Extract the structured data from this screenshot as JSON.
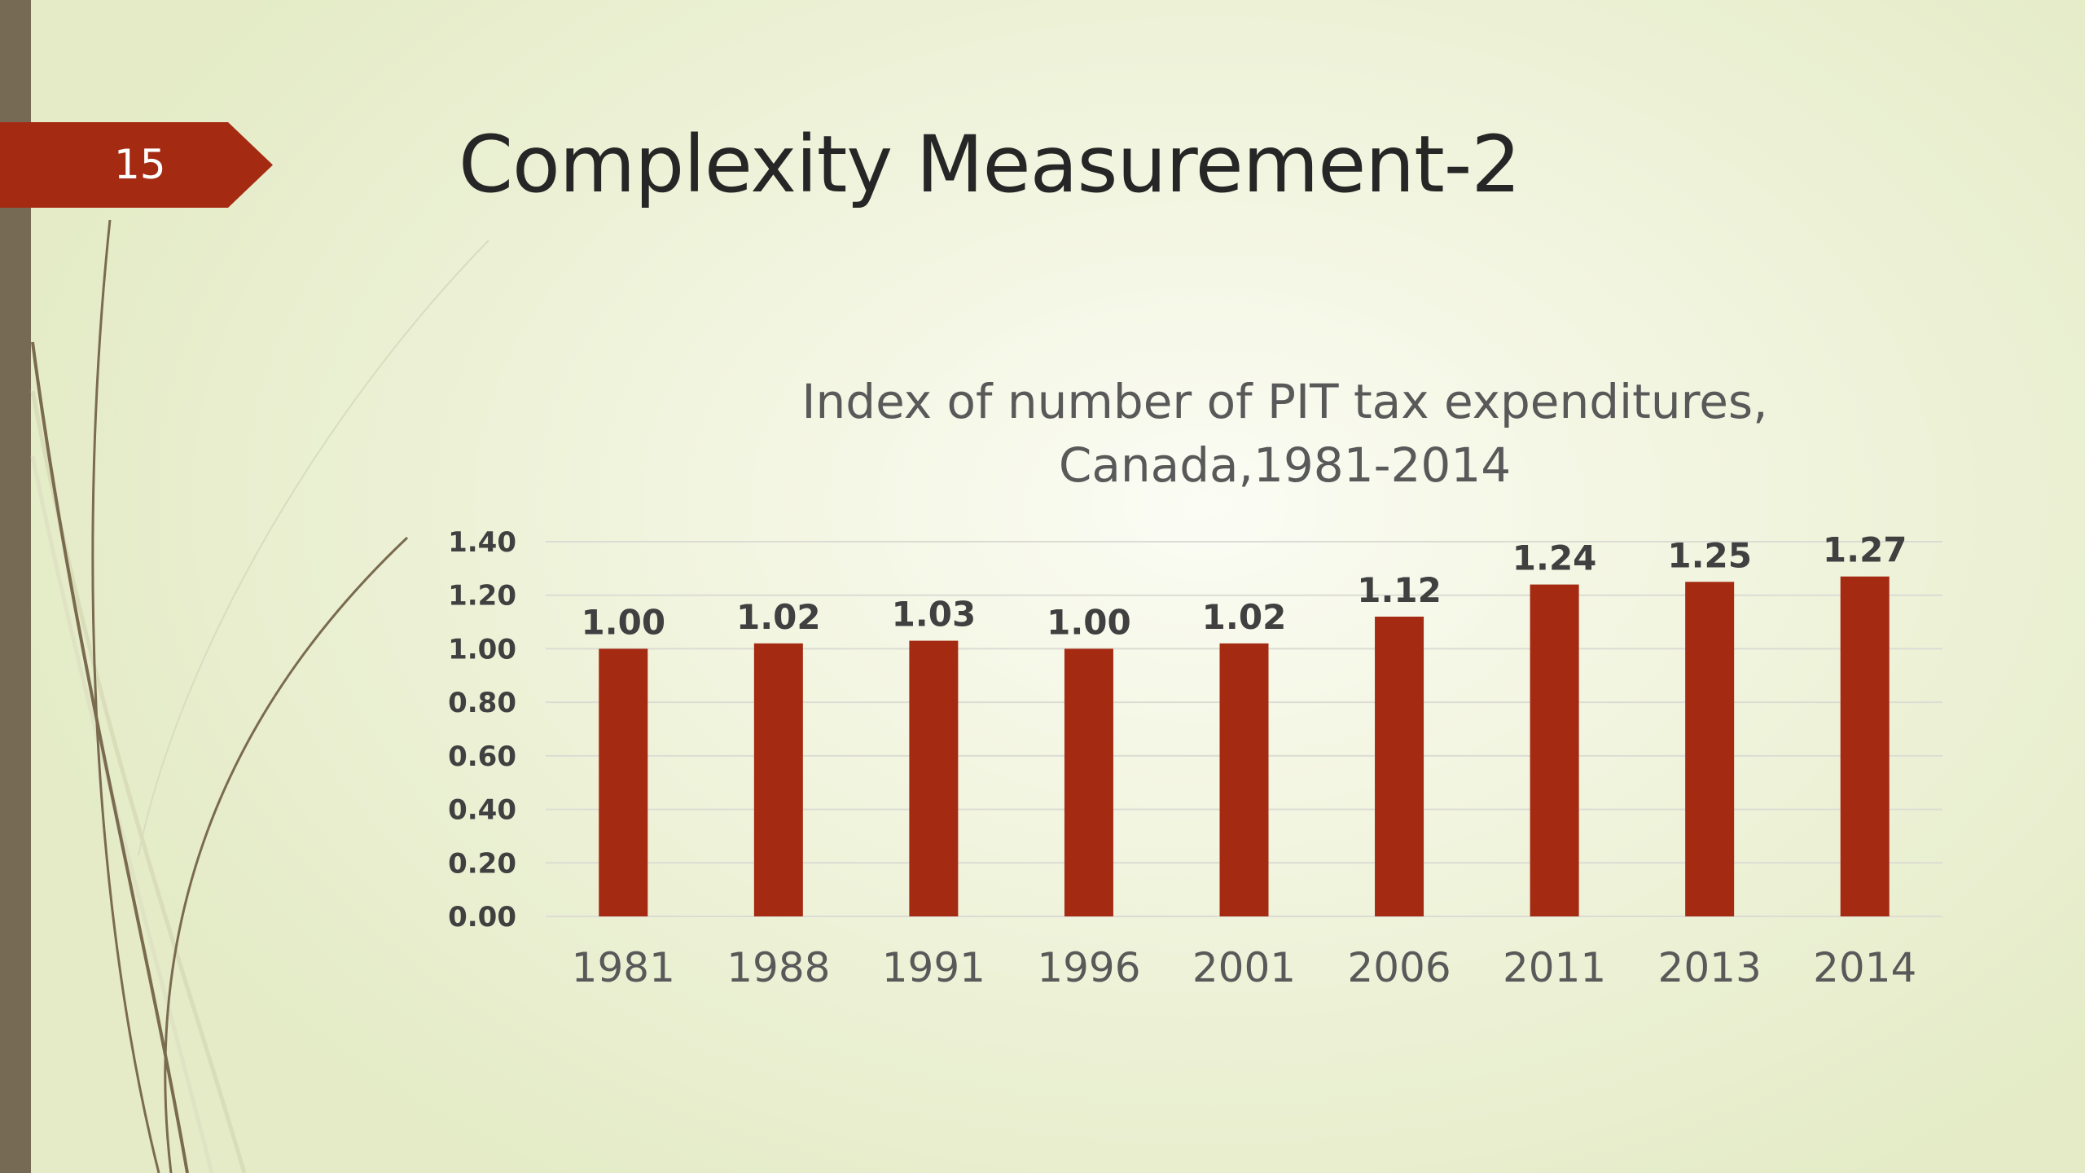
{
  "slide": {
    "number": "15",
    "title": "Complexity Measurement-2"
  },
  "theme": {
    "accent": "#a52a12",
    "sidebar": "#766a55",
    "background": "#eef2d9",
    "gridline": "#dcdcd4"
  },
  "chart_data": {
    "type": "bar",
    "title": [
      "Index of number of PIT tax expenditures,",
      "Canada,1981-2014"
    ],
    "categories": [
      "1981",
      "1988",
      "1991",
      "1996",
      "2001",
      "2006",
      "2011",
      "2013",
      "2014"
    ],
    "values": [
      1.0,
      1.02,
      1.03,
      1.0,
      1.02,
      1.12,
      1.24,
      1.25,
      1.27
    ],
    "data_labels": [
      "1.00",
      "1.02",
      "1.03",
      "1.00",
      "1.02",
      "1.12",
      "1.24",
      "1.25",
      "1.27"
    ],
    "yticks": [
      "0.00",
      "0.20",
      "0.40",
      "0.60",
      "0.80",
      "1.00",
      "1.20",
      "1.40"
    ],
    "ylim": [
      0,
      1.4
    ],
    "grid": true,
    "legend": "none",
    "bar_color": "#a52a12"
  }
}
